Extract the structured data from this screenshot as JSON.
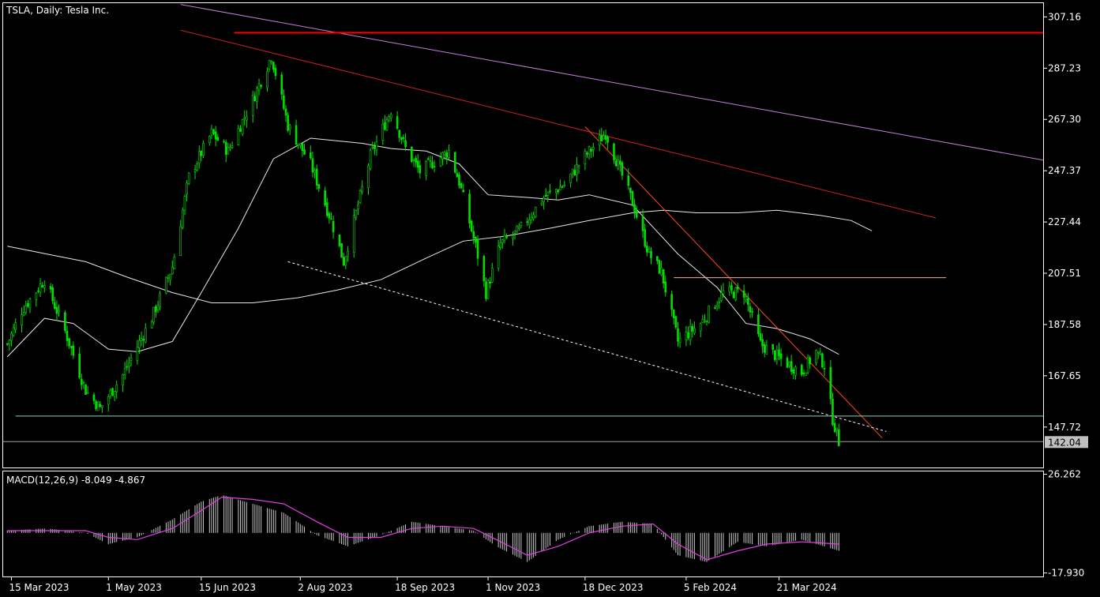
{
  "chart_data": {
    "type": "candlestick",
    "title": "TSLA, Daily:  Tesla Inc.",
    "y_ticks": [
      "307.16",
      "287.23",
      "267.30",
      "247.37",
      "227.44",
      "207.51",
      "187.58",
      "167.65",
      "147.72"
    ],
    "y_tick_values": [
      307.16,
      287.23,
      267.3,
      247.37,
      227.44,
      207.51,
      187.58,
      167.65,
      147.72
    ],
    "ylim": [
      132.0,
      312.5
    ],
    "current_price": "142.04",
    "current_price_value": 142.04,
    "x_ticks": [
      "15 Mar 2023",
      "1 May 2023",
      "15 Jun 2023",
      "2 Aug 2023",
      "18 Sep 2023",
      "1 Nov 2023",
      "18 Dec 2023",
      "5 Feb 2024",
      "21 Mar 2024"
    ],
    "x_tick_dates": [
      "2023-03-15",
      "2023-05-01",
      "2023-06-15",
      "2023-08-02",
      "2023-09-18",
      "2023-11-01",
      "2023-12-18",
      "2024-02-05",
      "2024-03-21"
    ],
    "xlim": [
      "2023-03-11",
      "2024-07-27"
    ],
    "series": [
      {
        "name": "price_keypoints",
        "x": [
          "2023-03-13",
          "2023-03-20",
          "2023-03-31",
          "2023-04-10",
          "2023-04-20",
          "2023-04-27",
          "2023-05-08",
          "2023-05-22",
          "2023-06-01",
          "2023-06-09",
          "2023-06-20",
          "2023-06-28",
          "2023-07-10",
          "2023-07-19",
          "2023-07-27",
          "2023-08-07",
          "2023-08-17",
          "2023-08-23",
          "2023-09-05",
          "2023-09-15",
          "2023-09-22",
          "2023-09-29",
          "2023-10-13",
          "2023-10-18",
          "2023-10-26",
          "2023-10-31",
          "2023-11-07",
          "2023-11-16",
          "2023-11-28",
          "2023-12-08",
          "2023-12-18",
          "2023-12-28",
          "2024-01-10",
          "2024-01-18",
          "2024-01-24",
          "2024-02-01",
          "2024-02-12",
          "2024-02-23",
          "2024-03-04",
          "2024-03-12",
          "2024-03-22",
          "2024-04-01",
          "2024-04-08",
          "2024-04-12",
          "2024-04-16",
          "2024-04-19"
        ],
        "y": [
          180,
          193,
          205,
          185,
          162,
          155,
          168,
          190,
          210,
          245,
          262,
          255,
          275,
          292,
          265,
          250,
          228,
          212,
          253,
          271,
          256,
          247,
          255,
          243,
          218,
          200,
          219,
          224,
          237,
          242,
          253,
          262,
          235,
          215,
          208,
          181,
          188,
          200,
          200,
          180,
          174,
          169,
          177,
          172,
          151,
          142
        ]
      }
    ],
    "moving_averages": [
      {
        "name": "MA_short",
        "x": [
          "2023-03-13",
          "2023-03-31",
          "2023-04-14",
          "2023-05-01",
          "2023-05-15",
          "2023-06-01",
          "2023-06-15",
          "2023-07-03",
          "2023-07-20",
          "2023-08-07",
          "2023-09-01",
          "2023-09-15",
          "2023-10-02",
          "2023-10-18",
          "2023-11-01",
          "2023-11-20",
          "2023-12-05",
          "2023-12-20",
          "2024-01-10",
          "2024-02-01",
          "2024-02-20",
          "2024-03-05",
          "2024-03-20",
          "2024-04-05",
          "2024-04-19"
        ],
        "y": [
          175,
          190,
          188,
          178,
          177,
          181,
          200,
          225,
          252,
          260,
          258,
          256,
          255,
          250,
          238,
          237,
          236,
          238,
          234,
          215,
          202,
          188,
          186,
          182,
          176
        ]
      },
      {
        "name": "MA_long",
        "x": [
          "2023-03-13",
          "2023-04-01",
          "2023-04-20",
          "2023-05-10",
          "2023-06-01",
          "2023-06-20",
          "2023-07-10",
          "2023-08-01",
          "2023-08-20",
          "2023-09-10",
          "2023-10-01",
          "2023-10-20",
          "2023-11-10",
          "2023-12-01",
          "2023-12-20",
          "2024-01-10",
          "2024-01-25",
          "2024-02-10",
          "2024-03-01",
          "2024-03-20",
          "2024-04-10",
          "2024-04-25",
          "2024-05-05"
        ],
        "y": [
          218,
          215,
          212,
          206,
          200,
          196,
          196,
          198,
          201,
          205,
          213,
          220,
          222,
          225,
          228,
          231,
          232,
          231,
          231,
          232,
          230,
          228,
          224
        ]
      }
    ],
    "trendlines": [
      {
        "kind": "purple_channel",
        "x": [
          "2023-06-05",
          "2024-07-27"
        ],
        "y": [
          312.0,
          251.5
        ]
      },
      {
        "kind": "red_upper",
        "x": [
          "2023-06-05",
          "2024-06-05"
        ],
        "y": [
          302.0,
          229.0
        ]
      },
      {
        "kind": "red_steep",
        "x": [
          "2023-12-18",
          "2024-05-10"
        ],
        "y": [
          264.5,
          143.5
        ]
      },
      {
        "kind": "dotted_support",
        "x": [
          "2023-07-27",
          "2024-05-12"
        ],
        "y": [
          212.0,
          146.0
        ]
      },
      {
        "kind": "resistance_red",
        "x": [
          "2023-07-01",
          "2024-07-27"
        ],
        "y": [
          301.0,
          301.0
        ]
      },
      {
        "kind": "level_orange",
        "x": [
          "2024-01-30",
          "2024-06-10"
        ],
        "y": [
          205.8,
          205.8
        ]
      },
      {
        "kind": "level_green",
        "x": [
          "2023-03-17",
          "2024-07-27"
        ],
        "y": [
          152.0,
          152.0
        ]
      }
    ],
    "macd": {
      "label": "MACD(12,26,9) -8.049 -4.867",
      "y_ticks": [
        "26.262",
        "-17.930"
      ],
      "y_tick_values": [
        26.262,
        -17.93
      ],
      "ylim": [
        -19.5,
        27.5
      ],
      "x": [
        "2023-03-13",
        "2023-04-01",
        "2023-04-20",
        "2023-05-01",
        "2023-05-15",
        "2023-06-01",
        "2023-06-15",
        "2023-06-25",
        "2023-07-10",
        "2023-07-25",
        "2023-08-10",
        "2023-08-25",
        "2023-09-10",
        "2023-09-25",
        "2023-10-10",
        "2023-10-25",
        "2023-11-05",
        "2023-11-20",
        "2023-12-05",
        "2023-12-20",
        "2024-01-05",
        "2024-01-20",
        "2024-02-01",
        "2024-02-15",
        "2024-03-01",
        "2024-03-15",
        "2024-04-01",
        "2024-04-19"
      ],
      "histogram": [
        1,
        2,
        0,
        -5,
        -2,
        6,
        14,
        17,
        13,
        9,
        -1,
        -6,
        -1,
        5,
        3,
        1,
        -6,
        -13,
        -3,
        3,
        5,
        4,
        -10,
        -13,
        -4,
        -6,
        -3,
        -8
      ],
      "signal": [
        1,
        1,
        1,
        -2,
        -3,
        2,
        10,
        16,
        15,
        13,
        5,
        -2,
        -2,
        2,
        3,
        2,
        -3,
        -10,
        -6,
        0,
        3,
        4,
        -5,
        -12,
        -8,
        -5,
        -4,
        -5
      ]
    }
  }
}
